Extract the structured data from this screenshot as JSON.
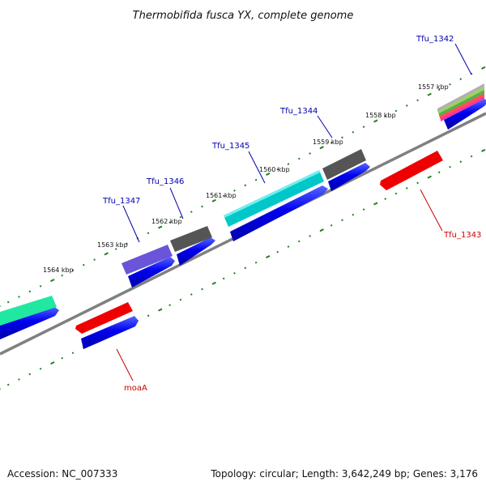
{
  "title": "Thermobifida fusca YX, complete genome",
  "footer": {
    "accession": "Accession: NC_007333",
    "topology": "Topology: circular; Length: 3,642,249 bp; Genes: 3,176"
  },
  "colors": {
    "cds": "#0000ee",
    "backbone": "#808080",
    "tick": "#208020",
    "label_plus": "#0000b0",
    "label_minus": "#cc0000"
  },
  "ruler": [
    {
      "label": "1557 kbp"
    },
    {
      "label": "1558 kbp"
    },
    {
      "label": "1559 kbp"
    },
    {
      "label": "1560 kbp"
    },
    {
      "label": "1561 kbp"
    },
    {
      "label": "1562 kbp"
    },
    {
      "label": "1563 kbp"
    },
    {
      "label": "1564 kbp"
    }
  ],
  "genes_plus": [
    {
      "name": "Tfu_1342",
      "color": "multi"
    },
    {
      "name": "Tfu_1344",
      "color": "#555555"
    },
    {
      "name": "Tfu_1345",
      "color": "#00c8c8"
    },
    {
      "name": "Tfu_1346",
      "color": "#555555"
    },
    {
      "name": "Tfu_1347",
      "color": "#6a55d8"
    },
    {
      "name": "",
      "color": "#20e8a0"
    }
  ],
  "genes_minus": [
    {
      "name": "Tfu_1343",
      "color": "#ee0000"
    },
    {
      "name": "moaA",
      "color": "#ee0000"
    }
  ]
}
